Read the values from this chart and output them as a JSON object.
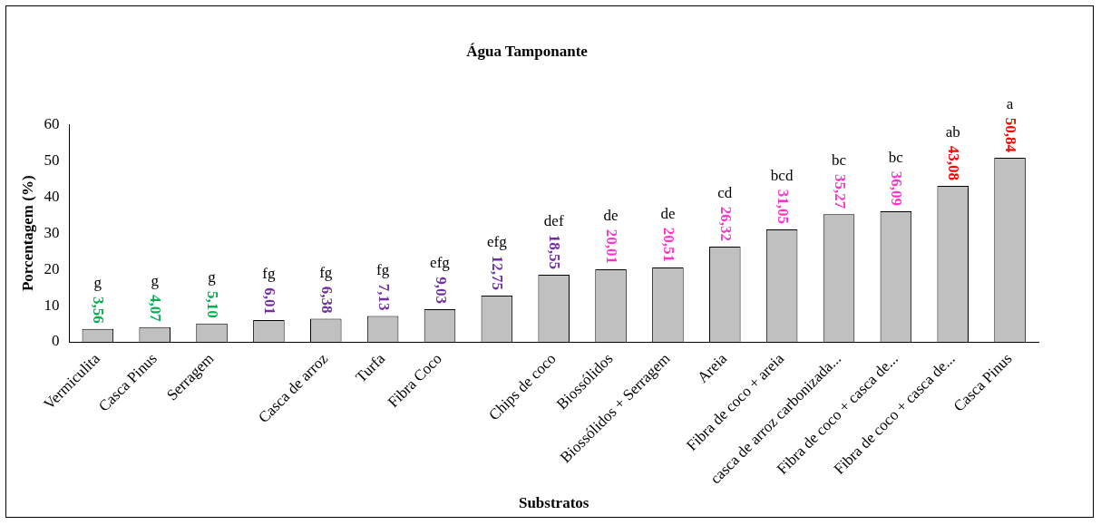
{
  "chart_data": {
    "type": "bar",
    "title": "Água Tamponante",
    "xlabel": "Substratos",
    "ylabel": "Porcentagem (%)",
    "categories": [
      "Vermiculita",
      "Casca Pinus",
      "Serragem",
      null,
      "Casca de arroz",
      "Turfa",
      "Fibra Coco",
      null,
      "Chips de coco",
      "Biossólidos",
      "Biossólidos + Serragem",
      "Areia",
      "Fibra de coco + areia",
      "casca de arroz carbonizada...",
      "Fibra de coco + casca de...",
      "Fibra de coco + casca de...",
      "Casca Pinus"
    ],
    "values": [
      3.56,
      4.07,
      5.1,
      6.01,
      6.38,
      7.13,
      9.03,
      12.75,
      18.55,
      20.01,
      20.51,
      26.32,
      31.05,
      35.27,
      36.09,
      43.08,
      50.84
    ],
    "value_labels": [
      "3,56",
      "4,07",
      "5,10",
      "6,01",
      "6,38",
      "7,13",
      "9,03",
      "12,75",
      "18,55",
      "20,01",
      "20,51",
      "26,32",
      "31,05",
      "35,27",
      "36,09",
      "43,08",
      "50,84"
    ],
    "color": "#c0c0c0",
    "ylim": [
      0,
      60
    ],
    "yticks": [
      0,
      10,
      20,
      30,
      40,
      50,
      60
    ],
    "grid": false,
    "annotations": [
      "g",
      "g",
      "g",
      "fg",
      "fg",
      "fg",
      "efg",
      "efg",
      "def",
      "de",
      "de",
      "cd",
      "bcd",
      "bc",
      "bc",
      "ab",
      "a"
    ]
  }
}
